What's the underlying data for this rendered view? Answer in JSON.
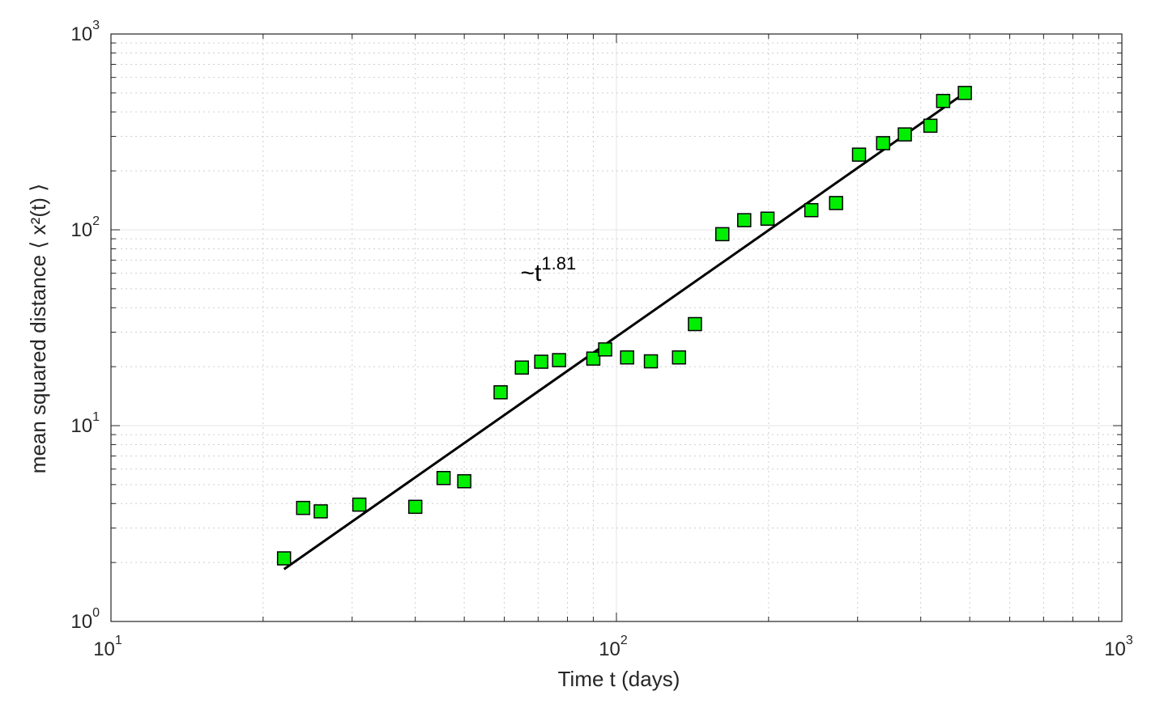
{
  "chart_data": {
    "type": "scatter",
    "x_scale": "log",
    "y_scale": "log",
    "xlim": [
      10,
      1000
    ],
    "ylim": [
      1,
      1000
    ],
    "grid": true,
    "minor_grid": true,
    "xlabel": "Time t (days)",
    "ylabel": "mean squared distance ⟨ x²(t) ⟩",
    "x_ticks": [
      {
        "base": "10",
        "exp": "1",
        "value": 10
      },
      {
        "base": "10",
        "exp": "2",
        "value": 100
      },
      {
        "base": "10",
        "exp": "3",
        "value": 1000
      }
    ],
    "y_ticks": [
      {
        "base": "10",
        "exp": "0",
        "value": 1
      },
      {
        "base": "10",
        "exp": "1",
        "value": 10
      },
      {
        "base": "10",
        "exp": "2",
        "value": 100
      },
      {
        "base": "10",
        "exp": "3",
        "value": 1000
      }
    ],
    "series": [
      {
        "marker": "square",
        "color": "#00ee00",
        "edge_color": "#000000",
        "x": [
          22,
          24,
          26,
          31,
          40,
          45.5,
          50,
          59,
          65,
          71,
          77,
          90,
          95,
          105,
          117,
          133,
          143,
          162,
          179,
          199,
          243,
          272,
          302,
          337,
          372,
          418,
          443,
          489
        ],
        "y": [
          2.1,
          3.8,
          3.65,
          3.95,
          3.85,
          5.4,
          5.2,
          14.8,
          19.8,
          21.2,
          21.6,
          22.0,
          24.5,
          22.3,
          21.3,
          22.3,
          33.0,
          95,
          112,
          114,
          126,
          137,
          242,
          277,
          307,
          340,
          455,
          500
        ]
      },
      {
        "type": "line",
        "color": "#000000",
        "x": [
          22,
          489
        ],
        "y": [
          1.85,
          500
        ]
      }
    ],
    "annotations": [
      {
        "text": "~t",
        "superscript": "1.81",
        "x": 80,
        "y": 55
      }
    ]
  }
}
